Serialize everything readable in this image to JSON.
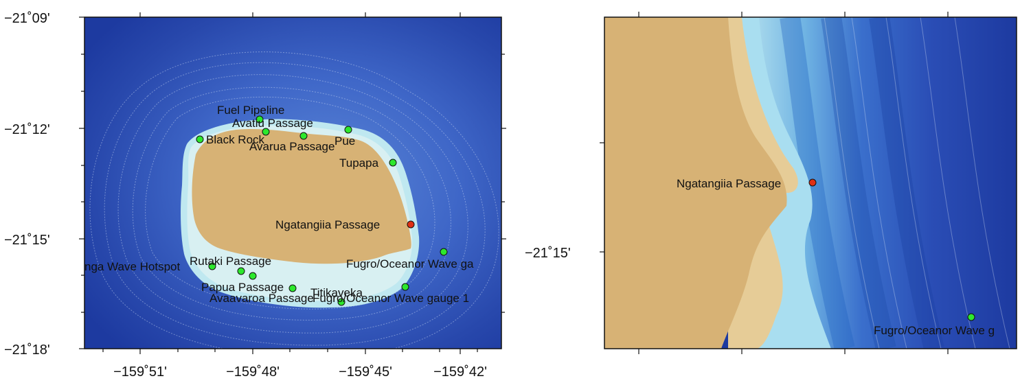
{
  "left_map": {
    "lat_ticks": [
      "−21˚09'",
      "−21˚12'",
      "−21˚15'",
      "−21˚18'"
    ],
    "lon_ticks": [
      "−159˚51'",
      "−159˚48'",
      "−159˚45'",
      "−159˚42'"
    ],
    "stations": [
      {
        "name": "Fuel Pipeline",
        "marker": "green"
      },
      {
        "name": "Avatiu Passage",
        "marker": "green"
      },
      {
        "name": "Black Rock",
        "marker": "green"
      },
      {
        "name": "Avarua Passage",
        "marker": "green"
      },
      {
        "name": "Pue",
        "marker": "green"
      },
      {
        "name": "Tupapa",
        "marker": "green"
      },
      {
        "name": "Ngatangiia Passage",
        "marker": "red"
      },
      {
        "name": "Rutaki Passage",
        "marker": "green"
      },
      {
        "name": "nga Wave Hotspot",
        "marker": "green"
      },
      {
        "name": "Fugro/Oceanor Wave ga",
        "marker": "green"
      },
      {
        "name": "Papua Passage",
        "marker": "green"
      },
      {
        "name": "Titikaveka",
        "marker": "green"
      },
      {
        "name": "Avaavaroa Passage",
        "marker": "green"
      },
      {
        "name": "Fugro/Oceanor Wave gauge 1",
        "marker": "green"
      }
    ]
  },
  "right_map": {
    "lat_ticks": [
      "−21˚15'"
    ],
    "stations": [
      {
        "name": "Ngatangiia Passage",
        "marker": "red"
      },
      {
        "name": "Fugro/Oceanor Wave g",
        "marker": "green"
      }
    ]
  },
  "colors": {
    "land": "#d7b275",
    "deep_ocean": "#1d3aa0",
    "mid_ocean": "#3f67c8",
    "shallow": "#bfe8f0",
    "marker_green": "#2de82d",
    "marker_red": "#e03015"
  }
}
